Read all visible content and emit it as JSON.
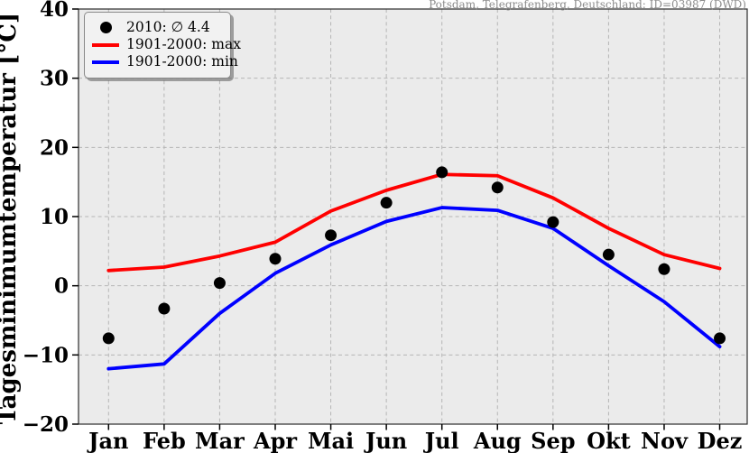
{
  "annotation": "Potsdam, Telegrafenberg, Deutschland: ID=03987 (DWD)",
  "legend": {
    "position": "top-left",
    "items": [
      {
        "label": "2010: ∅ 4.4",
        "marker": "dot",
        "color": "#000000"
      },
      {
        "label": "1901-2000: max",
        "marker": "line",
        "color": "#ff0000"
      },
      {
        "label": "1901-2000: min",
        "marker": "line",
        "color": "#0000ff"
      }
    ]
  },
  "theme": {
    "plot_background": "#ebebeb",
    "grid_color": "#b5b5b5",
    "frame_color": "#2b2b2b",
    "tick_label_color": "#000000",
    "annotation_color": "#8c8c8c"
  },
  "chart_data": {
    "type": "line",
    "title": "",
    "xlabel": "",
    "ylabel": "Tagesminimumtemperatur [°C]",
    "categories": [
      "Jan",
      "Feb",
      "Mar",
      "Apr",
      "Mai",
      "Jun",
      "Jul",
      "Aug",
      "Sep",
      "Okt",
      "Nov",
      "Dez"
    ],
    "ylim": [
      -20,
      40
    ],
    "yticks": [
      40,
      30,
      20,
      10,
      0,
      -10,
      -20
    ],
    "grid": "dashed-both-axes",
    "legend_position": "top-left",
    "series": [
      {
        "key": "2010",
        "name": "2010: ∅ 4.4",
        "render": "scatter",
        "color": "#000000",
        "values": [
          -7.6,
          -3.3,
          0.4,
          3.9,
          7.3,
          12.0,
          16.4,
          14.2,
          9.2,
          4.5,
          2.4,
          -7.6
        ]
      },
      {
        "key": "max",
        "name": "1901-2000: max",
        "render": "line",
        "color": "#ff0000",
        "values": [
          2.2,
          2.7,
          4.3,
          6.3,
          10.8,
          13.8,
          16.1,
          15.9,
          12.7,
          8.3,
          4.5,
          2.5
        ]
      },
      {
        "key": "min",
        "name": "1901-2000: min",
        "render": "line",
        "color": "#0000ff",
        "values": [
          -12.0,
          -11.3,
          -4.0,
          1.8,
          5.9,
          9.3,
          11.3,
          10.9,
          8.3,
          2.9,
          -2.3,
          -8.8
        ]
      }
    ]
  }
}
